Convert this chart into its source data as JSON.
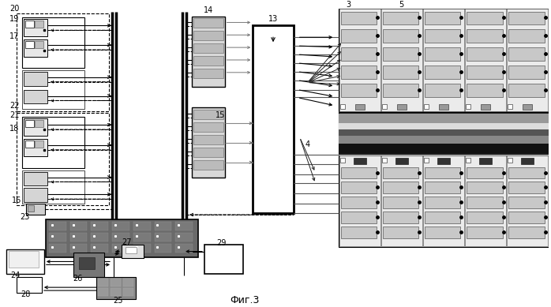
{
  "title": "Фиг.3",
  "bg": "#ffffff",
  "black": "#000000",
  "gray1": "#aaaaaa",
  "gray2": "#cccccc",
  "gray3": "#888888",
  "gray4": "#555555",
  "dgray": "#333333",
  "lgray": "#e8e8e8",
  "mgray": "#999999",
  "pcb_dark": "#666666",
  "pcb_med": "#888888",
  "pcb_bg": "#777777"
}
